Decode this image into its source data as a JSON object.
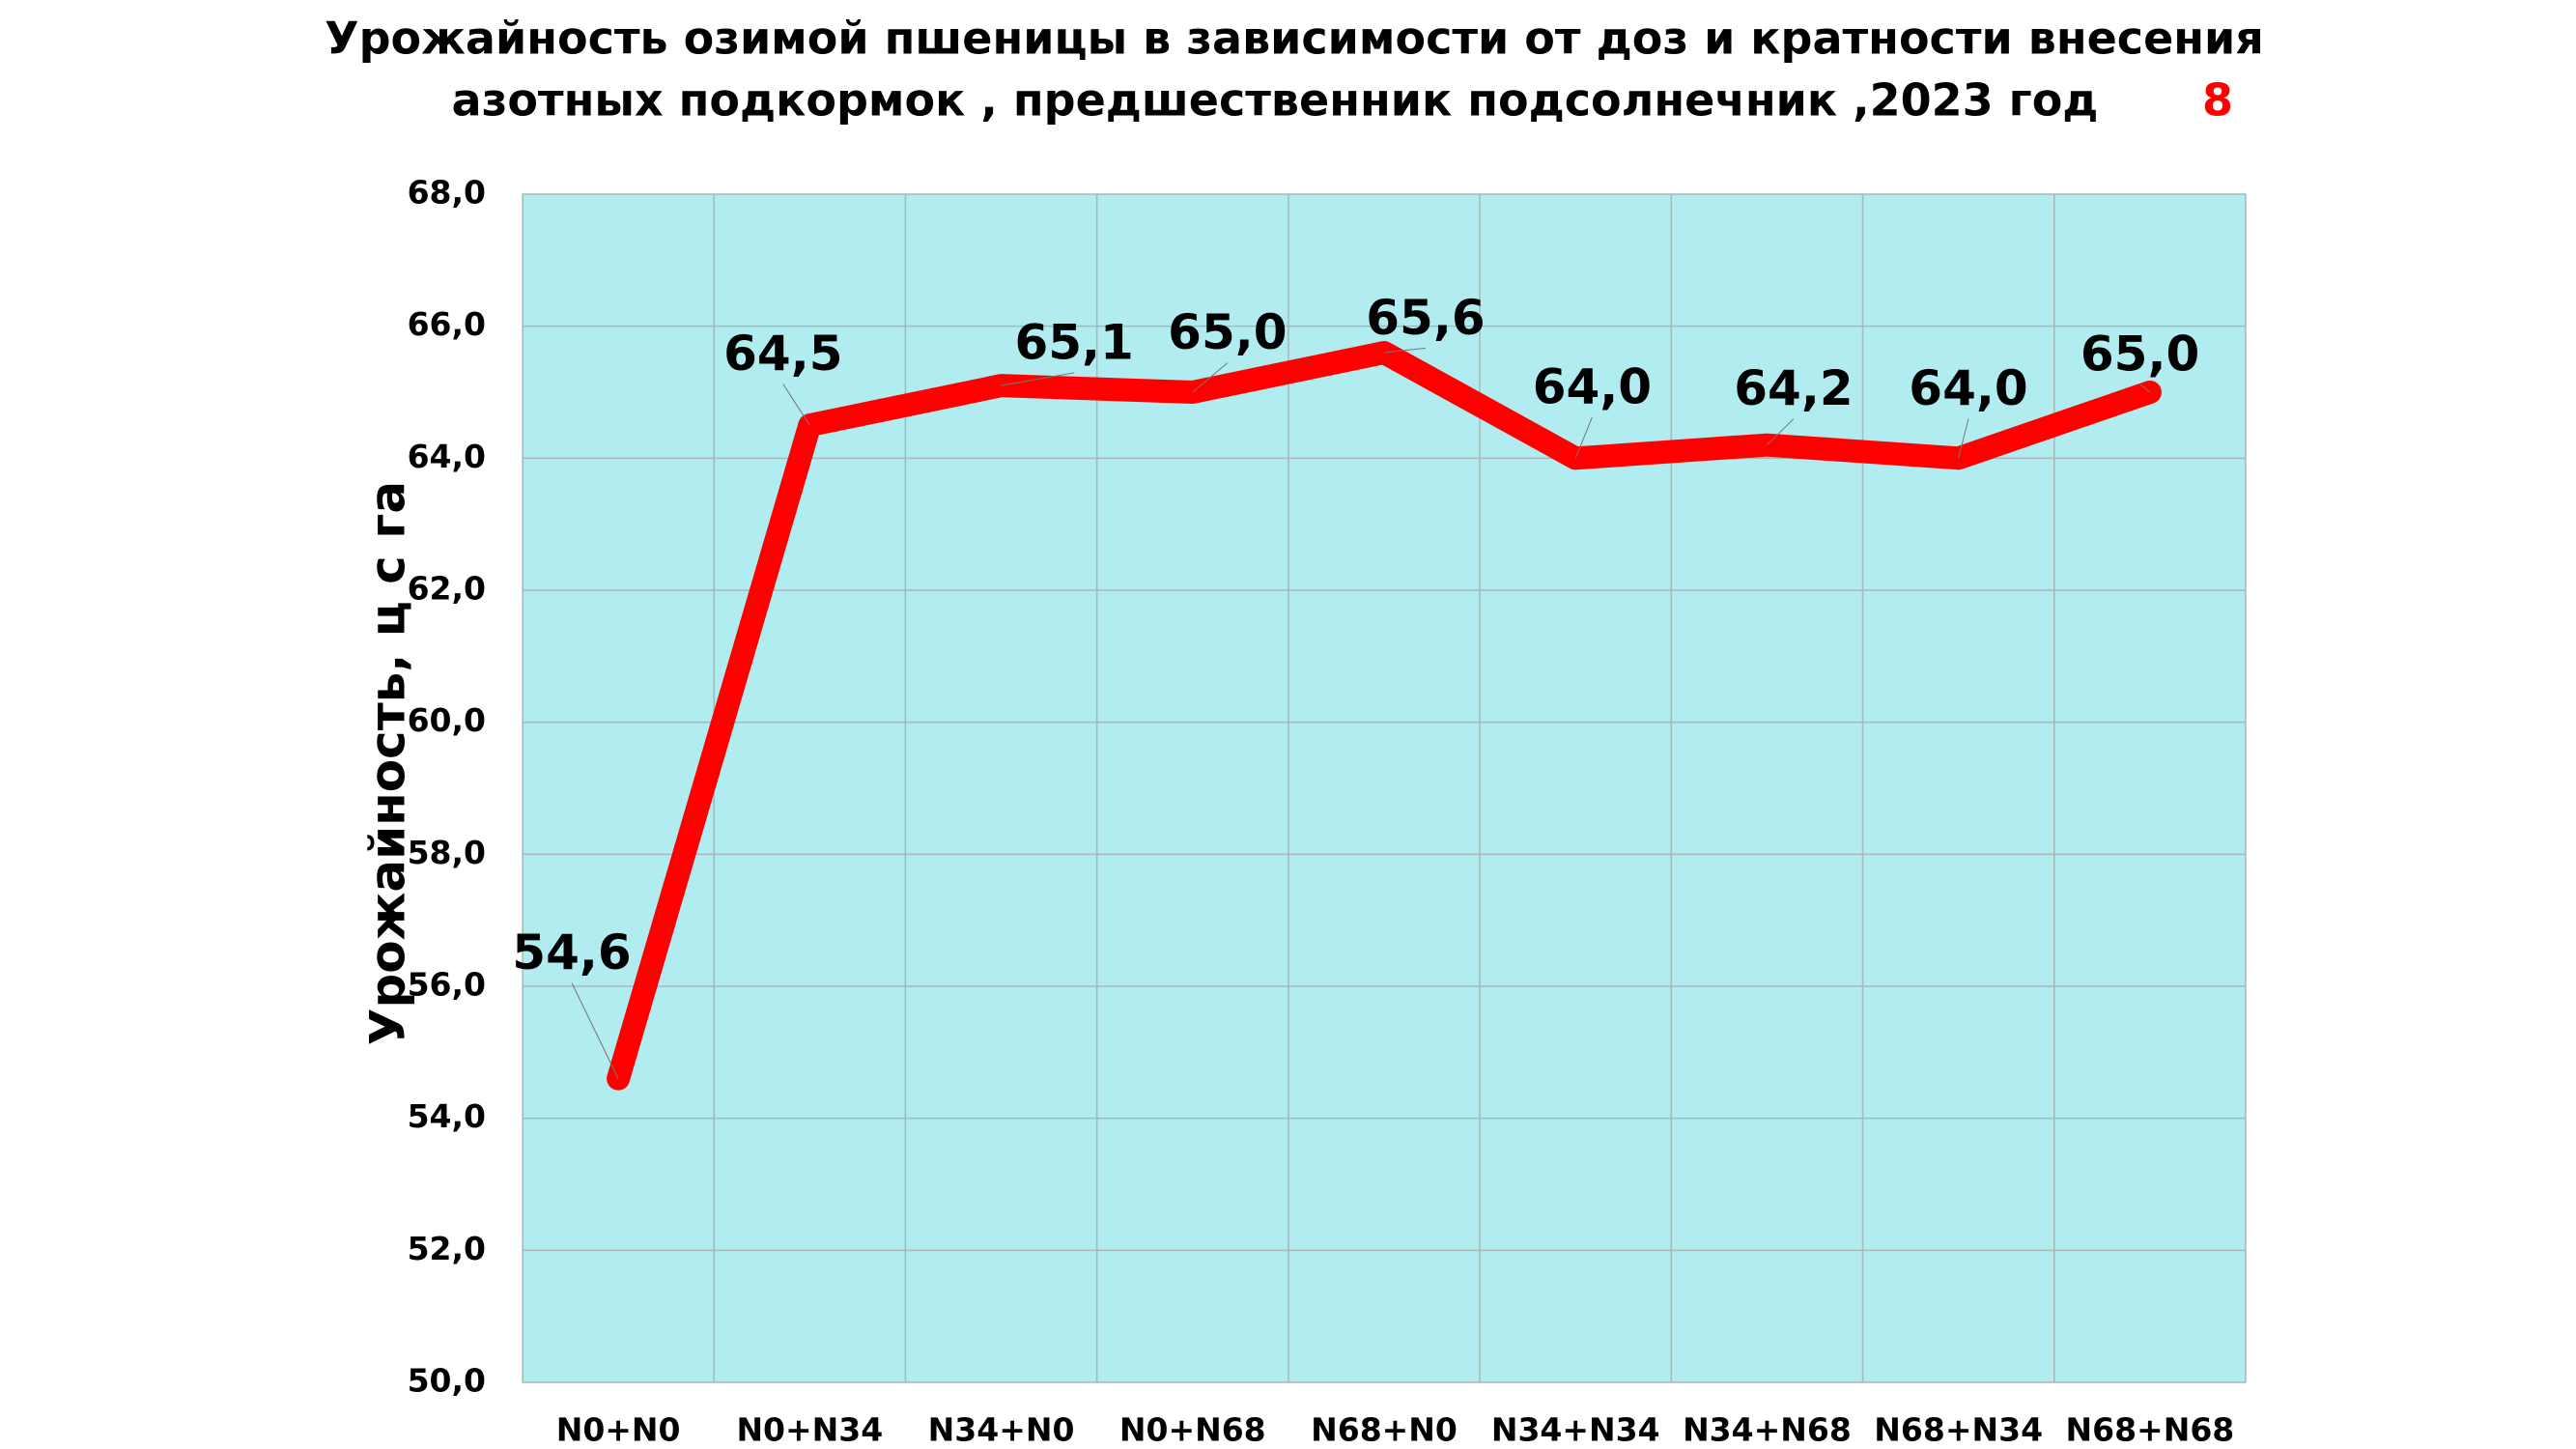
{
  "chart_data": {
    "type": "line",
    "title": [
      "Урожайность озимой пшеницы в зависимости от доз и кратности внесения",
      "азотных подкормок , предшественник подсолнечник ,2023 год"
    ],
    "slide_number": "8",
    "y_label": "Урожайность, ц с га",
    "categories": [
      "N0+N0",
      "N0+N34",
      "N34+N0",
      "N0+N68",
      "N68+N0",
      "N34+N34",
      "N34+N68",
      "N68+N34",
      "N68+N68"
    ],
    "series": [
      {
        "color": "#ff0000",
        "values": [
          54.6,
          64.5,
          65.1,
          65.0,
          65.6,
          64.0,
          64.2,
          64.0,
          65.0
        ],
        "value_labels": [
          "54,6",
          "64,5",
          "65,1",
          "65,0",
          "65,6",
          "64,0",
          "64,2",
          "64,0",
          "65,0"
        ]
      }
    ],
    "ylim": [
      50,
      68
    ],
    "yticks": [
      {
        "value": 50,
        "label": "50,0"
      },
      {
        "value": 52,
        "label": "52,0"
      },
      {
        "value": 54,
        "label": "54,0"
      },
      {
        "value": 56,
        "label": "56,0"
      },
      {
        "value": 58,
        "label": "58,0"
      },
      {
        "value": 60,
        "label": "60,0"
      },
      {
        "value": 62,
        "label": "62,0"
      },
      {
        "value": 64,
        "label": "64,0"
      },
      {
        "value": 66,
        "label": "66,0"
      },
      {
        "value": 68,
        "label": "68,0"
      }
    ],
    "grid": true,
    "plot_background": "#b0ecf0"
  }
}
